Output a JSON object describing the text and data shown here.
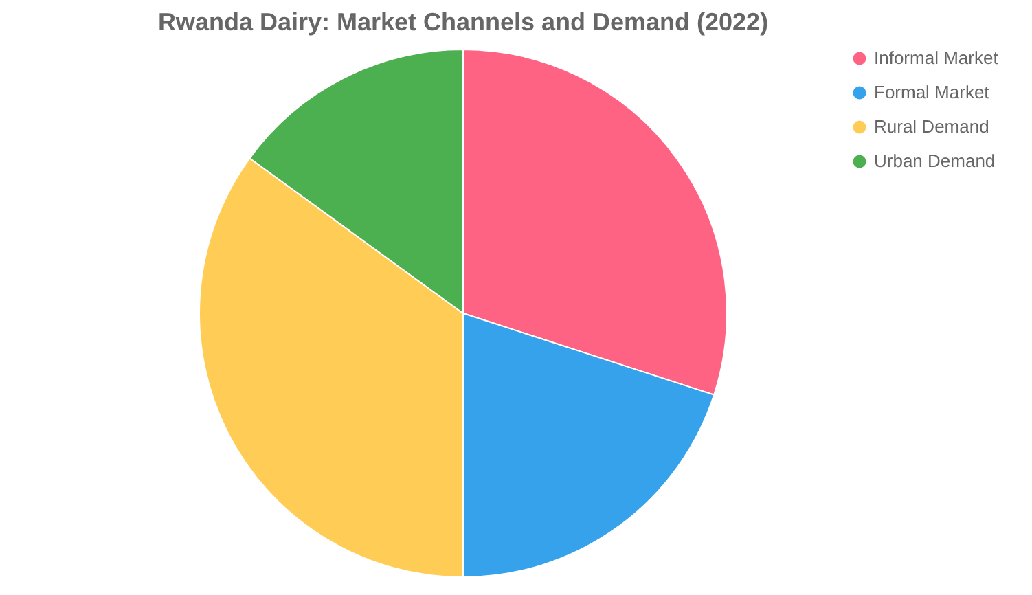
{
  "chart_data": {
    "type": "pie",
    "title": "Rwanda Dairy: Market Channels and Demand (2022)",
    "categories": [
      "Informal Market",
      "Formal Market",
      "Rural Demand",
      "Urban Demand"
    ],
    "values": [
      30,
      20,
      35,
      15
    ],
    "colors": [
      "#ff6384",
      "#36a2eb",
      "#ffcd56",
      "#4caf50"
    ],
    "legend": "right"
  }
}
